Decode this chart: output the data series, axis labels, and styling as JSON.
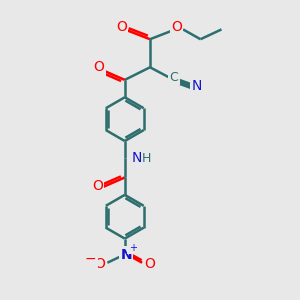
{
  "bg_color": "#e8e8e8",
  "bond_color": "#2d6e6e",
  "O_color": "#ff0000",
  "N_color": "#1414cc",
  "line_width": 1.8,
  "figsize": [
    3.0,
    3.0
  ],
  "dpi": 100,
  "xlim": [
    0,
    10
  ],
  "ylim": [
    0,
    10.5
  ]
}
